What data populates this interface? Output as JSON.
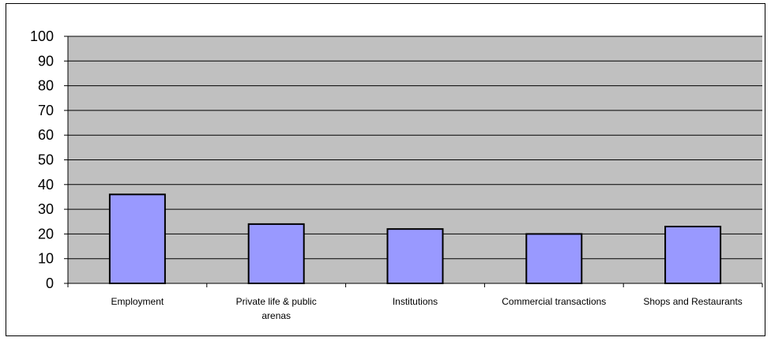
{
  "chart_data": {
    "type": "bar",
    "categories": [
      "Employment",
      "Private life & public arenas",
      "Institutions",
      "Commercial transactions",
      "Shops and Restaurants"
    ],
    "category_lines": [
      [
        "Employment"
      ],
      [
        "Private life & public",
        "arenas"
      ],
      [
        "Institutions"
      ],
      [
        "Commercial transactions"
      ],
      [
        "Shops and Restaurants"
      ]
    ],
    "values": [
      36,
      24,
      22,
      20,
      23
    ],
    "ylim": [
      0,
      100
    ],
    "yticks": [
      "0",
      "10",
      "20",
      "30",
      "40",
      "50",
      "60",
      "70",
      "80",
      "90",
      "100"
    ],
    "grid": true,
    "legend": "none",
    "title": "",
    "xlabel": "",
    "ylabel": "",
    "colors": {
      "plot_background": "#c0c0c0",
      "bar_fill": "#9999ff",
      "bar_stroke": "#000000",
      "gridline": "#000000"
    }
  }
}
